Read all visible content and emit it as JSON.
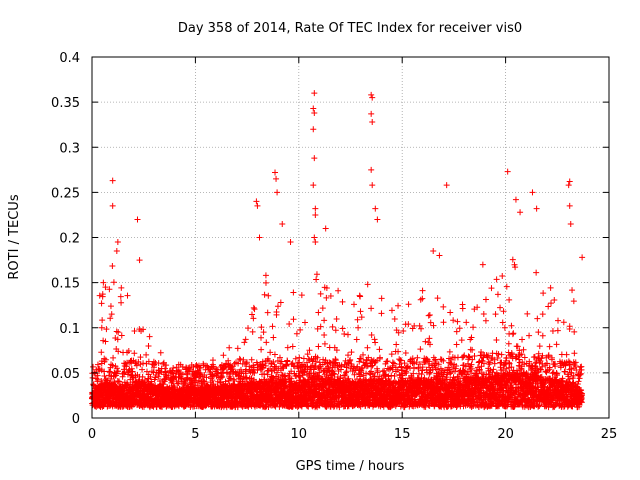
{
  "chart_data": {
    "type": "scatter",
    "title": "Day 358 of 2014, Rate Of TEC Index for receiver vis0",
    "xlabel": "GPS time / hours",
    "ylabel": "ROTI / TECUs",
    "xlim": [
      0,
      25
    ],
    "ylim": [
      0,
      0.4
    ],
    "xticks": [
      0,
      5,
      10,
      15,
      20,
      25
    ],
    "yticks": [
      0,
      0.05,
      0.1,
      0.15,
      0.2,
      0.25,
      0.3,
      0.35,
      0.4
    ],
    "xtick_labels": [
      "0",
      "5",
      "10",
      "15",
      "20",
      "25"
    ],
    "ytick_labels": [
      "0",
      "0.05",
      "0.1",
      "0.15",
      "0.2",
      "0.25",
      "0.3",
      "0.35",
      "0.4"
    ],
    "grid": true,
    "marker": "+",
    "series_color": "#ff0000",
    "point_spacing_hours": 0.015,
    "data_range_hours": [
      0,
      23.7
    ],
    "envelope": [
      {
        "x": 0.0,
        "base": 0.022,
        "upper": 0.05
      },
      {
        "x": 0.3,
        "base": 0.028,
        "upper": 0.14
      },
      {
        "x": 0.6,
        "base": 0.035,
        "upper": 0.16
      },
      {
        "x": 1.0,
        "base": 0.032,
        "upper": 0.17
      },
      {
        "x": 1.5,
        "base": 0.03,
        "upper": 0.14
      },
      {
        "x": 2.0,
        "base": 0.032,
        "upper": 0.13
      },
      {
        "x": 2.5,
        "base": 0.033,
        "upper": 0.12
      },
      {
        "x": 3.0,
        "base": 0.03,
        "upper": 0.08
      },
      {
        "x": 4.0,
        "base": 0.026,
        "upper": 0.06
      },
      {
        "x": 5.0,
        "base": 0.027,
        "upper": 0.06
      },
      {
        "x": 6.0,
        "base": 0.028,
        "upper": 0.065
      },
      {
        "x": 7.0,
        "base": 0.03,
        "upper": 0.09
      },
      {
        "x": 7.5,
        "base": 0.032,
        "upper": 0.11
      },
      {
        "x": 8.0,
        "base": 0.034,
        "upper": 0.17
      },
      {
        "x": 9.0,
        "base": 0.034,
        "upper": 0.16
      },
      {
        "x": 10.0,
        "base": 0.035,
        "upper": 0.15
      },
      {
        "x": 10.7,
        "base": 0.038,
        "upper": 0.17
      },
      {
        "x": 11.5,
        "base": 0.036,
        "upper": 0.16
      },
      {
        "x": 12.5,
        "base": 0.034,
        "upper": 0.12
      },
      {
        "x": 13.5,
        "base": 0.036,
        "upper": 0.16
      },
      {
        "x": 14.5,
        "base": 0.034,
        "upper": 0.12
      },
      {
        "x": 15.5,
        "base": 0.035,
        "upper": 0.15
      },
      {
        "x": 16.5,
        "base": 0.036,
        "upper": 0.14
      },
      {
        "x": 17.5,
        "base": 0.036,
        "upper": 0.12
      },
      {
        "x": 18.5,
        "base": 0.038,
        "upper": 0.14
      },
      {
        "x": 19.5,
        "base": 0.04,
        "upper": 0.15
      },
      {
        "x": 20.0,
        "base": 0.042,
        "upper": 0.19
      },
      {
        "x": 21.0,
        "base": 0.042,
        "upper": 0.2
      },
      {
        "x": 22.0,
        "base": 0.038,
        "upper": 0.15
      },
      {
        "x": 23.0,
        "base": 0.034,
        "upper": 0.17
      },
      {
        "x": 23.7,
        "base": 0.025,
        "upper": 0.12
      }
    ],
    "spikes": [
      {
        "x": 0.55,
        "y": 0.15
      },
      {
        "x": 0.65,
        "y": 0.145
      },
      {
        "x": 1.0,
        "y": 0.263
      },
      {
        "x": 1.0,
        "y": 0.235
      },
      {
        "x": 1.25,
        "y": 0.195
      },
      {
        "x": 1.2,
        "y": 0.185
      },
      {
        "x": 2.2,
        "y": 0.22
      },
      {
        "x": 2.3,
        "y": 0.175
      },
      {
        "x": 7.95,
        "y": 0.24
      },
      {
        "x": 8.0,
        "y": 0.235
      },
      {
        "x": 8.1,
        "y": 0.2
      },
      {
        "x": 8.85,
        "y": 0.272
      },
      {
        "x": 8.9,
        "y": 0.265
      },
      {
        "x": 8.95,
        "y": 0.25
      },
      {
        "x": 9.2,
        "y": 0.215
      },
      {
        "x": 9.6,
        "y": 0.195
      },
      {
        "x": 10.75,
        "y": 0.36
      },
      {
        "x": 10.7,
        "y": 0.343
      },
      {
        "x": 10.75,
        "y": 0.338
      },
      {
        "x": 10.7,
        "y": 0.32
      },
      {
        "x": 10.75,
        "y": 0.288
      },
      {
        "x": 10.7,
        "y": 0.258
      },
      {
        "x": 10.8,
        "y": 0.232
      },
      {
        "x": 10.8,
        "y": 0.225
      },
      {
        "x": 10.75,
        "y": 0.2
      },
      {
        "x": 10.8,
        "y": 0.195
      },
      {
        "x": 11.3,
        "y": 0.21
      },
      {
        "x": 13.5,
        "y": 0.358
      },
      {
        "x": 13.55,
        "y": 0.355
      },
      {
        "x": 13.5,
        "y": 0.337
      },
      {
        "x": 13.55,
        "y": 0.328
      },
      {
        "x": 13.5,
        "y": 0.275
      },
      {
        "x": 13.55,
        "y": 0.258
      },
      {
        "x": 13.7,
        "y": 0.232
      },
      {
        "x": 13.8,
        "y": 0.22
      },
      {
        "x": 16.5,
        "y": 0.185
      },
      {
        "x": 16.8,
        "y": 0.18
      },
      {
        "x": 17.15,
        "y": 0.258
      },
      {
        "x": 18.9,
        "y": 0.17
      },
      {
        "x": 20.1,
        "y": 0.273
      },
      {
        "x": 20.5,
        "y": 0.242
      },
      {
        "x": 20.7,
        "y": 0.228
      },
      {
        "x": 21.3,
        "y": 0.25
      },
      {
        "x": 21.5,
        "y": 0.232
      },
      {
        "x": 23.1,
        "y": 0.262
      },
      {
        "x": 23.05,
        "y": 0.258
      },
      {
        "x": 23.1,
        "y": 0.235
      },
      {
        "x": 23.15,
        "y": 0.215
      },
      {
        "x": 23.7,
        "y": 0.178
      }
    ]
  }
}
